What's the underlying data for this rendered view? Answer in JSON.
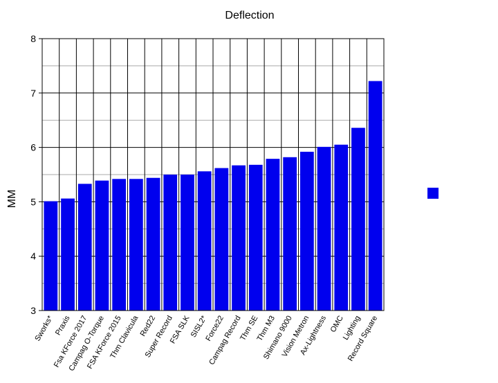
{
  "chart_data": {
    "type": "bar",
    "title": "Deflection",
    "xlabel": "",
    "ylabel": "MM",
    "ylim": [
      3,
      8
    ],
    "yticks": [
      3,
      4,
      5,
      6,
      7,
      8
    ],
    "grid": true,
    "legend_position": "right",
    "bar_color": "#0000ee",
    "categories": [
      "Sworks*",
      "Praxis",
      "Fsa KForce 2017",
      "Campag O-Torque",
      "FSA KForce 2015",
      "Thm Clavicula",
      "Red22",
      "Super Record",
      "FSA SLK",
      "SISL2*",
      "Force22",
      "Campag Record",
      "Thm SE",
      "Thm M3",
      "Shimano 9000",
      "Vision Metron",
      "Ax-Lightness",
      "OMC",
      "Lighting",
      "Record Square"
    ],
    "series": [
      {
        "values": [
          5.01,
          5.06,
          5.33,
          5.39,
          5.42,
          5.42,
          5.44,
          5.5,
          5.5,
          5.56,
          5.62,
          5.67,
          5.68,
          5.79,
          5.82,
          5.92,
          6.01,
          6.05,
          6.36,
          7.22
        ]
      }
    ]
  }
}
